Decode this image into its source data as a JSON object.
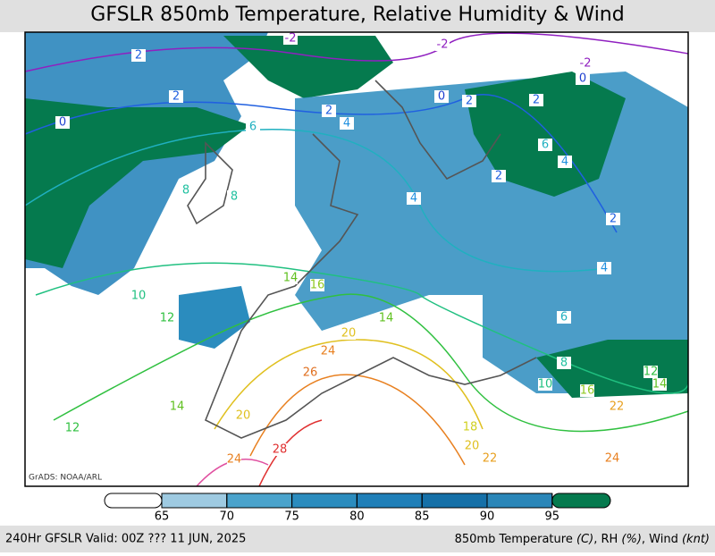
{
  "header": {
    "title": "GFSLR 850mb Temperature, Relative Humidity & Wind"
  },
  "map": {
    "credit": "GrADS: NOAA/ARL",
    "contour_labels": [
      {
        "text": "-2",
        "color": "#9020c0"
      },
      {
        "text": "-2",
        "color": "#9020c0"
      },
      {
        "text": "-2",
        "color": "#9020c0"
      },
      {
        "text": "0",
        "color": "#1e40d0"
      },
      {
        "text": "2",
        "color": "#2060e0"
      },
      {
        "text": "2",
        "color": "#2060e0"
      },
      {
        "text": "0",
        "color": "#1e40d0"
      },
      {
        "text": "0",
        "color": "#1e40d0"
      },
      {
        "text": "2",
        "color": "#2060e0"
      },
      {
        "text": "2",
        "color": "#2060e0"
      },
      {
        "text": "2",
        "color": "#2060e0"
      },
      {
        "text": "4",
        "color": "#2090e0"
      },
      {
        "text": "6",
        "color": "#20b0c0"
      },
      {
        "text": "6",
        "color": "#20b0c0"
      },
      {
        "text": "4",
        "color": "#2090e0"
      },
      {
        "text": "2",
        "color": "#2060e0"
      },
      {
        "text": "2",
        "color": "#2060e0"
      },
      {
        "text": "8",
        "color": "#20c0a0"
      },
      {
        "text": "8",
        "color": "#20c0a0"
      },
      {
        "text": "4",
        "color": "#2090e0"
      },
      {
        "text": "10",
        "color": "#20c080"
      },
      {
        "text": "12",
        "color": "#30c040"
      },
      {
        "text": "14",
        "color": "#60c020"
      },
      {
        "text": "16",
        "color": "#90c820"
      },
      {
        "text": "14",
        "color": "#60c020"
      },
      {
        "text": "4",
        "color": "#2090e0"
      },
      {
        "text": "6",
        "color": "#20b0c0"
      },
      {
        "text": "8",
        "color": "#20c0a0"
      },
      {
        "text": "12",
        "color": "#30c040"
      },
      {
        "text": "10",
        "color": "#20c080"
      },
      {
        "text": "14",
        "color": "#60c020"
      },
      {
        "text": "16",
        "color": "#90c820"
      },
      {
        "text": "22",
        "color": "#e8a020"
      },
      {
        "text": "20",
        "color": "#e0c020"
      },
      {
        "text": "24",
        "color": "#e88020"
      },
      {
        "text": "26",
        "color": "#e07020"
      },
      {
        "text": "18",
        "color": "#d0d020"
      },
      {
        "text": "20",
        "color": "#e0c020"
      },
      {
        "text": "22",
        "color": "#e8a020"
      },
      {
        "text": "28",
        "color": "#e03030"
      },
      {
        "text": "24",
        "color": "#e88020"
      },
      {
        "text": "20",
        "color": "#e0c020"
      },
      {
        "text": "14",
        "color": "#60c020"
      },
      {
        "text": "12",
        "color": "#30c040"
      },
      {
        "text": "24",
        "color": "#e88020"
      }
    ]
  },
  "colorbar": {
    "ticks": [
      65,
      70,
      75,
      80,
      85,
      90,
      95
    ],
    "colors": [
      "#ffffff",
      "#9ecae1",
      "#4aa3cc",
      "#2b8cbe",
      "#1f7fb8",
      "#1570a8",
      "#2a86b8",
      "#057a4e"
    ]
  },
  "footer": {
    "left": "240Hr GFSLR Valid: 00Z ??? 11 JUN, 2025",
    "right": [
      "850mb Temperature ",
      "(C)",
      ", RH ",
      "(%)",
      ", Wind ",
      "(knt)"
    ]
  }
}
